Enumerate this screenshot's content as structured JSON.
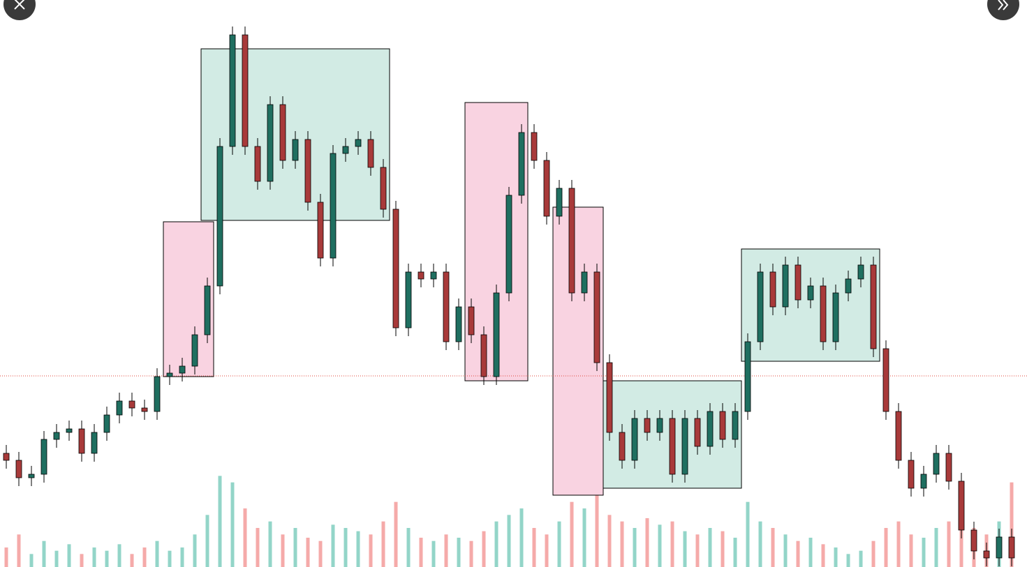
{
  "chart_data": {
    "type": "candlestick",
    "ylim": [
      0,
      813
    ],
    "open": [
      163,
      153,
      128,
      133,
      183,
      193,
      198,
      163,
      193,
      218,
      238,
      228,
      223,
      273,
      278,
      288,
      333,
      403,
      603,
      763,
      603,
      553,
      663,
      583,
      613,
      523,
      443,
      593,
      603,
      613,
      573,
      513,
      343,
      423,
      413,
      423,
      323,
      373,
      333,
      273,
      393,
      533,
      623,
      583,
      503,
      543,
      393,
      423,
      293,
      193,
      153,
      213,
      193,
      213,
      133,
      213,
      173,
      223,
      183,
      223,
      323,
      423,
      373,
      433,
      383,
      403,
      323,
      393,
      413,
      433,
      313,
      223,
      153,
      113,
      133,
      163,
      123,
      53,
      23,
      13,
      43
    ],
    "high": [
      175,
      165,
      145,
      195,
      205,
      210,
      210,
      205,
      230,
      250,
      250,
      240,
      285,
      290,
      300,
      345,
      415,
      615,
      775,
      775,
      615,
      675,
      675,
      625,
      625,
      535,
      605,
      615,
      625,
      625,
      585,
      525,
      435,
      435,
      435,
      435,
      385,
      385,
      345,
      405,
      545,
      635,
      635,
      595,
      555,
      555,
      435,
      435,
      305,
      205,
      225,
      225,
      225,
      225,
      225,
      225,
      235,
      235,
      235,
      335,
      435,
      435,
      445,
      445,
      415,
      415,
      405,
      425,
      445,
      445,
      325,
      235,
      165,
      145,
      175,
      175,
      135,
      65,
      35,
      55,
      55
    ],
    "low": [
      141,
      116,
      116,
      121,
      171,
      181,
      151,
      151,
      181,
      206,
      216,
      211,
      211,
      261,
      266,
      276,
      321,
      391,
      591,
      591,
      541,
      541,
      571,
      571,
      511,
      431,
      431,
      581,
      591,
      561,
      501,
      331,
      331,
      401,
      401,
      311,
      311,
      321,
      261,
      261,
      381,
      521,
      571,
      491,
      491,
      381,
      381,
      281,
      181,
      141,
      141,
      181,
      181,
      121,
      121,
      161,
      161,
      171,
      171,
      211,
      311,
      361,
      361,
      371,
      371,
      311,
      311,
      381,
      401,
      301,
      211,
      141,
      101,
      101,
      121,
      111,
      41,
      11,
      1,
      1,
      1
    ],
    "close": [
      153,
      128,
      133,
      183,
      193,
      198,
      163,
      193,
      218,
      238,
      228,
      223,
      273,
      278,
      288,
      333,
      403,
      603,
      763,
      603,
      553,
      663,
      583,
      613,
      523,
      443,
      593,
      603,
      613,
      573,
      513,
      343,
      423,
      413,
      423,
      323,
      373,
      333,
      273,
      393,
      533,
      623,
      583,
      503,
      543,
      393,
      423,
      293,
      193,
      153,
      213,
      193,
      213,
      133,
      213,
      173,
      223,
      183,
      223,
      323,
      423,
      373,
      433,
      383,
      403,
      323,
      393,
      413,
      433,
      313,
      223,
      153,
      113,
      133,
      163,
      123,
      53,
      23,
      13,
      43,
      13
    ],
    "volume": [
      30,
      50,
      20,
      40,
      25,
      35,
      20,
      30,
      25,
      35,
      20,
      30,
      40,
      25,
      30,
      50,
      80,
      140,
      130,
      90,
      60,
      70,
      50,
      60,
      45,
      40,
      65,
      60,
      55,
      50,
      70,
      100,
      60,
      45,
      40,
      50,
      45,
      40,
      55,
      70,
      80,
      90,
      60,
      50,
      70,
      100,
      90,
      110,
      80,
      70,
      60,
      75,
      65,
      70,
      55,
      50,
      60,
      55,
      45,
      100,
      70,
      60,
      50,
      40,
      45,
      35,
      30,
      20,
      25,
      40,
      60,
      70,
      50,
      45,
      60,
      70,
      80,
      60,
      50,
      70,
      130
    ],
    "volume_ylim": [
      0,
      150
    ],
    "up_color": "#1f6f60",
    "down_color": "#a83a3a",
    "volume_up_color": "#93d5c8",
    "volume_down_color": "#f5aaa9",
    "zones": [
      {
        "from": 13,
        "to": 16,
        "top": 495,
        "bottom": 273,
        "color": "#f9d3e1"
      },
      {
        "from": 16,
        "to": 30,
        "top": 743,
        "bottom": 497,
        "color": "#d2ebe4"
      },
      {
        "from": 37,
        "to": 41,
        "top": 666,
        "bottom": 267,
        "color": "#f9d3e1"
      },
      {
        "from": 44,
        "to": 47,
        "top": 516,
        "bottom": 103,
        "color": "#f9d3e1"
      },
      {
        "from": 48,
        "to": 58,
        "top": 267,
        "bottom": 113,
        "color": "#d2ebe4"
      },
      {
        "from": 59,
        "to": 69,
        "top": 456,
        "bottom": 295,
        "color": "#d2ebe4"
      }
    ],
    "reference_line": {
      "value": 274,
      "color": "#e0453a"
    }
  }
}
